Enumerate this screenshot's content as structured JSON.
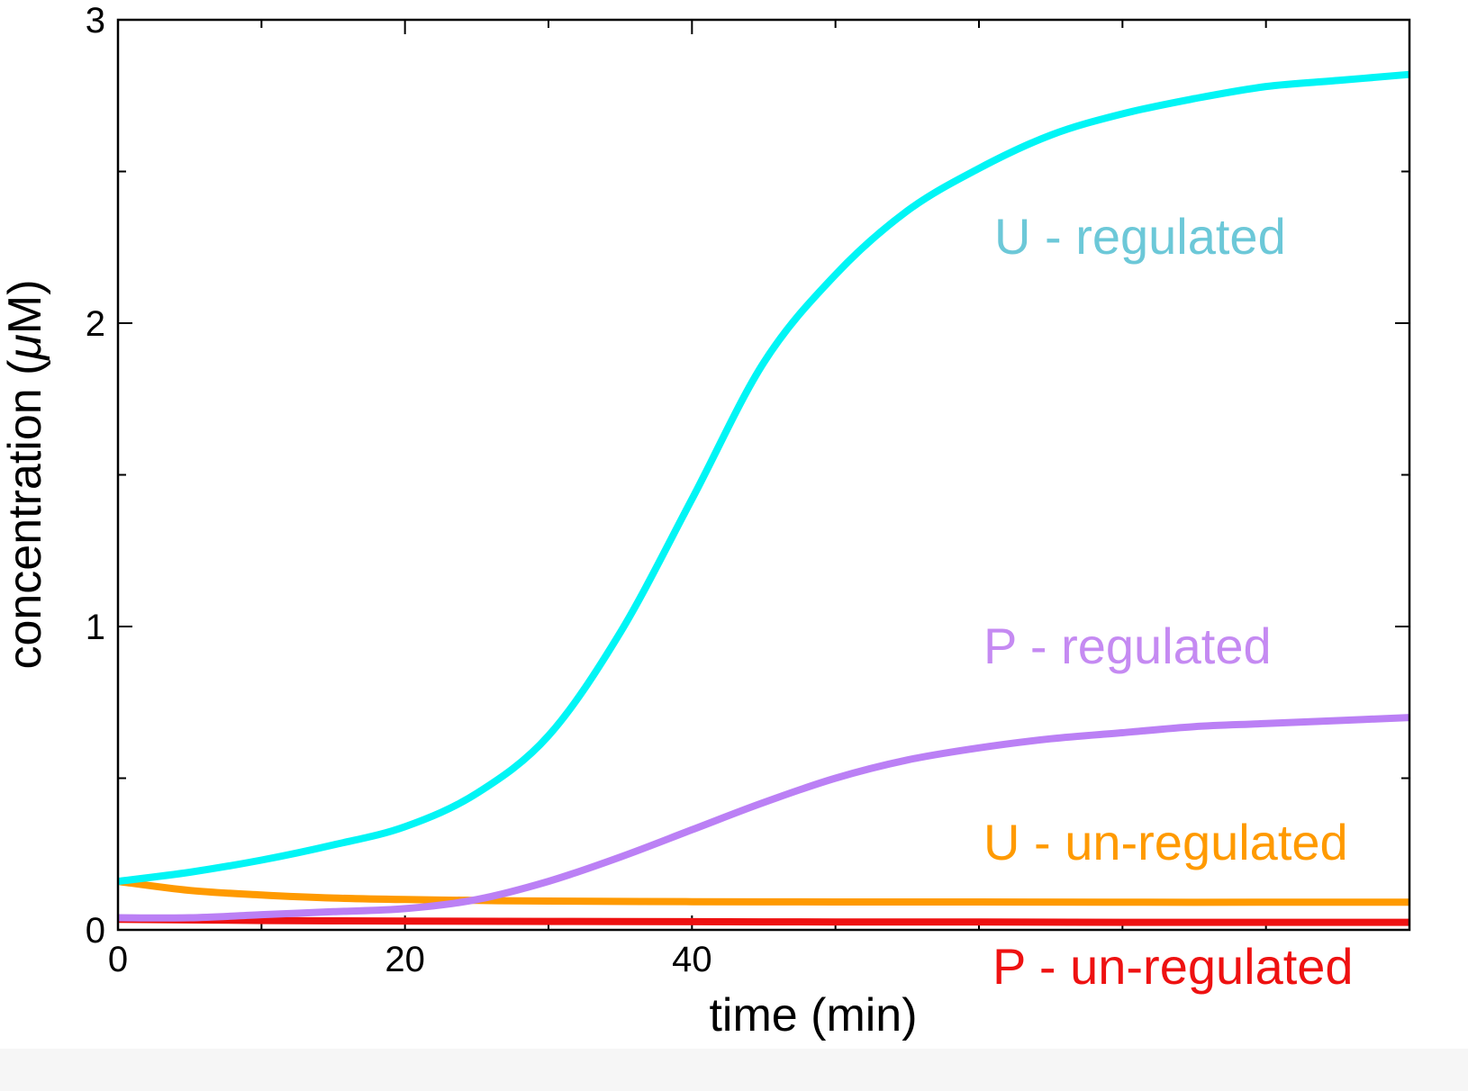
{
  "chart_data": {
    "type": "line",
    "xlabel": "time (min)",
    "ylabel_main": "concentration (",
    "ylabel_unit_symbol": "μ",
    "ylabel_unit": "M)",
    "xlim": [
      0,
      90
    ],
    "ylim": [
      0,
      3
    ],
    "x_ticks": [
      0,
      20,
      40
    ],
    "x_tick_labels": [
      "0",
      "20",
      "40"
    ],
    "x_minor_ticks": [
      10,
      30,
      50,
      60,
      70,
      80
    ],
    "y_ticks": [
      0,
      1,
      2,
      3
    ],
    "y_tick_labels": [
      "0",
      "1",
      "2",
      "3"
    ],
    "y_minor_ticks": [
      0.5,
      1.5,
      2.5
    ],
    "grid": false,
    "legend": "inline labels at right",
    "series": [
      {
        "name": "U - regulated",
        "color": "#00f5f5",
        "label_color": "#6cc8d8",
        "x": [
          0,
          5,
          10,
          15,
          20,
          25,
          30,
          35,
          40,
          45,
          50,
          55,
          60,
          65,
          70,
          75,
          80,
          85,
          90
        ],
        "y": [
          0.16,
          0.19,
          0.23,
          0.28,
          0.34,
          0.45,
          0.64,
          0.98,
          1.42,
          1.87,
          2.16,
          2.37,
          2.51,
          2.62,
          2.69,
          2.74,
          2.78,
          2.8,
          2.82
        ]
      },
      {
        "name": "P - regulated",
        "color": "#bb80f5",
        "label_color": "#c58af2",
        "x": [
          0,
          5,
          10,
          15,
          20,
          25,
          30,
          35,
          40,
          45,
          50,
          55,
          60,
          65,
          70,
          75,
          80,
          85,
          90
        ],
        "y": [
          0.04,
          0.04,
          0.05,
          0.06,
          0.07,
          0.1,
          0.16,
          0.24,
          0.33,
          0.42,
          0.5,
          0.56,
          0.6,
          0.63,
          0.65,
          0.67,
          0.68,
          0.69,
          0.7
        ]
      },
      {
        "name": "U - un-regulated",
        "color": "#ff9a00",
        "label_color": "#ff9a00",
        "x": [
          0,
          5,
          10,
          15,
          20,
          25,
          30,
          40,
          50,
          60,
          70,
          80,
          90
        ],
        "y": [
          0.16,
          0.13,
          0.115,
          0.105,
          0.1,
          0.097,
          0.095,
          0.093,
          0.092,
          0.092,
          0.091,
          0.091,
          0.091
        ]
      },
      {
        "name": "P - un-regulated",
        "color": "#ee1111",
        "label_color": "#ee1111",
        "x": [
          0,
          10,
          20,
          30,
          40,
          50,
          60,
          70,
          80,
          90
        ],
        "y": [
          0.035,
          0.031,
          0.029,
          0.028,
          0.027,
          0.026,
          0.026,
          0.025,
          0.025,
          0.025
        ]
      }
    ]
  }
}
